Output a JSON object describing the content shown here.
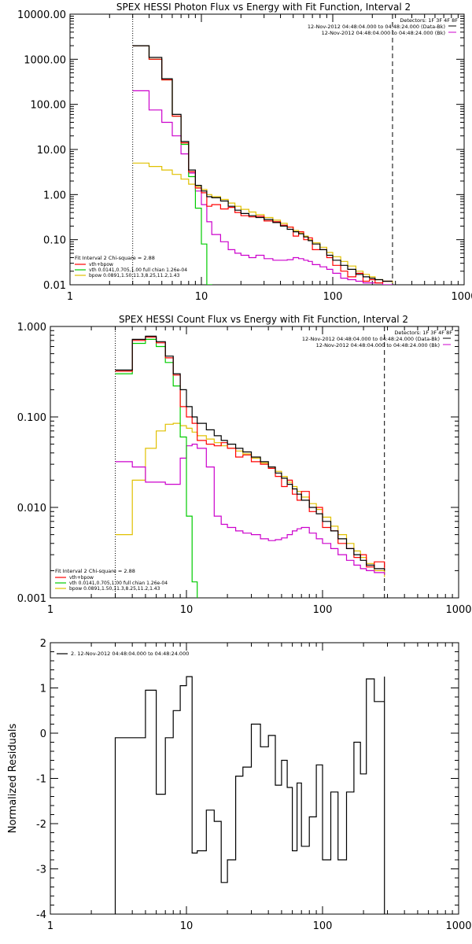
{
  "colors": {
    "background": "#ffffff",
    "axis": "#000000",
    "data": "#000000",
    "total": "#ff0000",
    "vth": "#00cc00",
    "bpow": "#e0c000",
    "background_model": "#cc00cc"
  },
  "chart_data": [
    {
      "type": "line",
      "title": "SPEX HESSI Photon Flux vs Energy with Fit Function, Interval 2",
      "xlabel": "",
      "ylabel": "",
      "xscale": "log",
      "yscale": "log",
      "xlim": [
        1,
        1000
      ],
      "ylim": [
        0.01,
        10000
      ],
      "x_ticks": [
        1,
        10,
        100,
        1000
      ],
      "x_ticklabels": [
        "1",
        "10",
        "100",
        "1000"
      ],
      "y_ticks": [
        0.01,
        0.1,
        1,
        10,
        100,
        1000,
        10000
      ],
      "y_ticklabels": [
        "0.01",
        "0.10",
        "1.00",
        "10.00",
        "100.00",
        "1000.00",
        "10000.00"
      ],
      "fit_range": [
        3,
        285
      ],
      "header": [
        "Detectors: 1F 3F 4F 8F",
        "12-Nov-2012 04:48:04.000 to 04:48:24.000 (Data-Bk)",
        "12-Nov-2012 04:48:04.000 to 04:48:24.000 (Bk)"
      ],
      "legend": {
        "position": "bottom-left",
        "title": "Fit Interval 2   Chi-square = 2.88",
        "entries": [
          {
            "label": "vth+bpow",
            "color": "#ff0000"
          },
          {
            "label": "vth 0.0141,0.705,1.00  full chian 1.26e-04",
            "color": "#00cc00"
          },
          {
            "label": "bpow 0.0891,1.50,11.3,8.25,11.2,1.43",
            "color": "#e0c000"
          }
        ]
      },
      "series": [
        {
          "x": [
            3,
            4,
            5,
            6,
            7,
            8,
            9,
            10,
            11,
            12,
            14,
            16,
            18,
            20,
            23,
            26,
            30,
            35,
            40,
            45,
            50,
            55,
            60,
            65,
            70,
            80,
            90,
            100,
            115,
            130,
            150,
            170,
            190,
            210,
            240,
            285
          ],
          "y": [
            2000,
            1100,
            370,
            60,
            15,
            3.5,
            1.6,
            1.2,
            0.9,
            0.85,
            0.72,
            0.55,
            0.45,
            0.38,
            0.34,
            0.31,
            0.28,
            0.24,
            0.2,
            0.17,
            0.15,
            0.135,
            0.115,
            0.095,
            0.08,
            0.06,
            0.045,
            0.035,
            0.027,
            0.022,
            0.017,
            0.015,
            0.014,
            0.013,
            0.012,
            0.012
          ]
        },
        {
          "x": [
            3,
            4,
            5,
            6,
            7,
            8,
            9,
            10,
            11,
            12,
            14,
            16,
            18,
            20,
            23,
            26,
            30,
            35,
            40,
            45,
            50,
            55,
            60,
            65,
            70,
            80,
            90,
            100,
            115,
            130,
            150,
            170,
            190,
            210,
            240,
            285
          ],
          "y": [
            2000,
            1000,
            350,
            55,
            14,
            3.2,
            1.4,
            1.1,
            0.55,
            0.6,
            0.48,
            0.52,
            0.4,
            0.34,
            0.32,
            0.33,
            0.26,
            0.25,
            0.21,
            0.19,
            0.12,
            0.15,
            0.1,
            0.11,
            0.06,
            0.06,
            0.04,
            0.027,
            0.02,
            0.015,
            0.018,
            0.012,
            0.013,
            0.011,
            0.012,
            0.012
          ]
        },
        {
          "x": [
            3,
            4,
            5,
            6,
            7,
            8,
            9,
            10,
            11,
            12
          ],
          "y": [
            2000,
            1000,
            350,
            55,
            13,
            2.5,
            0.5,
            0.08,
            0.01,
            0.001
          ]
        },
        {
          "x": [
            3,
            4,
            5,
            6,
            7,
            8,
            9,
            10,
            11,
            12,
            14,
            16,
            18,
            20,
            23,
            26,
            30,
            35,
            40,
            45,
            50,
            55,
            60,
            65,
            70,
            80,
            90,
            100,
            115,
            130,
            150,
            170,
            190,
            210,
            240,
            285
          ],
          "y": [
            5,
            4.2,
            3.5,
            2.8,
            2.2,
            1.7,
            1.5,
            1.3,
            1.0,
            0.9,
            0.78,
            0.65,
            0.55,
            0.47,
            0.41,
            0.36,
            0.31,
            0.27,
            0.23,
            0.19,
            0.16,
            0.14,
            0.12,
            0.1,
            0.085,
            0.068,
            0.052,
            0.042,
            0.033,
            0.026,
            0.02,
            0.017,
            0.015,
            0.013,
            0.012,
            0.011
          ]
        },
        {
          "x": [
            3,
            4,
            5,
            6,
            7,
            8,
            9,
            10,
            11,
            12,
            14,
            16,
            18,
            20,
            23,
            26,
            30,
            35,
            40,
            45,
            50,
            55,
            60,
            65,
            70,
            80,
            90,
            100,
            115,
            130,
            150,
            170,
            190,
            210,
            240,
            285
          ],
          "y": [
            200,
            75,
            40,
            20,
            8,
            3,
            1.2,
            0.6,
            0.25,
            0.13,
            0.09,
            0.06,
            0.05,
            0.045,
            0.04,
            0.045,
            0.038,
            0.035,
            0.035,
            0.036,
            0.04,
            0.038,
            0.035,
            0.033,
            0.028,
            0.025,
            0.022,
            0.018,
            0.014,
            0.013,
            0.012,
            0.011,
            0.011,
            0.011,
            0.01,
            0.01
          ]
        }
      ]
    },
    {
      "type": "line",
      "title": "SPEX HESSI Count Flux vs Energy with Fit Function, Interval 2",
      "xlabel": "",
      "ylabel": "",
      "xscale": "log",
      "yscale": "log",
      "xlim": [
        1,
        1000
      ],
      "ylim": [
        0.001,
        1
      ],
      "x_ticks": [
        1,
        10,
        100,
        1000
      ],
      "x_ticklabels": [
        "1",
        "10",
        "100",
        "1000"
      ],
      "y_ticks": [
        0.001,
        0.01,
        0.1,
        1
      ],
      "y_ticklabels": [
        "0.001",
        "0.010",
        "0.100",
        "1.000"
      ],
      "fit_range": [
        3,
        285
      ],
      "header": [
        "Detectors: 1F 3F 4F 8F",
        "12-Nov-2012 04:48:04.000 to 04:48:24.000 (Data-Bk)",
        "12-Nov-2012 04:48:04.000 to 04:48:24.000 (Bk)"
      ],
      "legend": {
        "position": "bottom-left",
        "title": "Fit Interval 2   Chi-square = 2.88",
        "entries": [
          {
            "label": "vth+bpow",
            "color": "#ff0000"
          },
          {
            "label": "vth 0.0141,0.705,1.00  full chian 1.26e-04",
            "color": "#00cc00"
          },
          {
            "label": "bpow 0.0891,1.50,11.3,8.25,11.2,1.43",
            "color": "#e0c000"
          }
        ]
      },
      "series": [
        {
          "x": [
            3,
            4,
            5,
            6,
            7,
            8,
            9,
            10,
            11,
            12,
            14,
            16,
            18,
            20,
            23,
            26,
            30,
            35,
            40,
            45,
            50,
            55,
            60,
            65,
            70,
            80,
            90,
            100,
            115,
            130,
            150,
            170,
            190,
            210,
            240,
            285
          ],
          "y": [
            0.33,
            0.72,
            0.78,
            0.68,
            0.47,
            0.3,
            0.2,
            0.13,
            0.1,
            0.085,
            0.072,
            0.062,
            0.055,
            0.05,
            0.045,
            0.041,
            0.036,
            0.032,
            0.028,
            0.024,
            0.021,
            0.018,
            0.016,
            0.014,
            0.012,
            0.01,
            0.0085,
            0.007,
            0.0055,
            0.0045,
            0.0035,
            0.003,
            0.0026,
            0.0023,
            0.0021,
            0.002
          ]
        },
        {
          "x": [
            3,
            4,
            5,
            6,
            7,
            8,
            9,
            10,
            11,
            12,
            14,
            16,
            18,
            20,
            23,
            26,
            30,
            35,
            40,
            45,
            50,
            55,
            60,
            65,
            70,
            80,
            90,
            100,
            115,
            130,
            150,
            170,
            190,
            210,
            240,
            285
          ],
          "y": [
            0.32,
            0.7,
            0.76,
            0.66,
            0.45,
            0.29,
            0.13,
            0.1,
            0.085,
            0.055,
            0.05,
            0.048,
            0.052,
            0.045,
            0.036,
            0.038,
            0.032,
            0.03,
            0.027,
            0.022,
            0.017,
            0.02,
            0.014,
            0.012,
            0.015,
            0.009,
            0.01,
            0.006,
            0.0055,
            0.004,
            0.0035,
            0.0028,
            0.003,
            0.0022,
            0.0025,
            0.002
          ]
        },
        {
          "x": [
            3,
            4,
            5,
            6,
            7,
            8,
            9,
            10,
            11,
            12
          ],
          "y": [
            0.3,
            0.65,
            0.72,
            0.6,
            0.4,
            0.22,
            0.06,
            0.008,
            0.0015,
            0.0005
          ]
        },
        {
          "x": [
            3,
            4,
            5,
            6,
            7,
            8,
            9,
            10,
            11,
            12,
            14,
            16,
            18,
            20,
            23,
            26,
            30,
            35,
            40,
            45,
            50,
            55,
            60,
            65,
            70,
            80,
            90,
            100,
            115,
            130,
            150,
            170,
            190,
            210,
            240,
            285
          ],
          "y": [
            0.005,
            0.02,
            0.045,
            0.07,
            0.083,
            0.085,
            0.08,
            0.075,
            0.068,
            0.062,
            0.057,
            0.052,
            0.048,
            0.045,
            0.042,
            0.039,
            0.035,
            0.031,
            0.028,
            0.025,
            0.022,
            0.019,
            0.017,
            0.015,
            0.013,
            0.011,
            0.0095,
            0.0078,
            0.0062,
            0.005,
            0.004,
            0.0033,
            0.0028,
            0.0024,
            0.002,
            0.0017
          ]
        },
        {
          "x": [
            3,
            4,
            5,
            6,
            7,
            8,
            9,
            10,
            11,
            12,
            14,
            16,
            18,
            20,
            23,
            26,
            30,
            35,
            40,
            45,
            50,
            55,
            60,
            65,
            70,
            80,
            90,
            100,
            115,
            130,
            150,
            170,
            190,
            210,
            240,
            285
          ],
          "y": [
            0.032,
            0.028,
            0.019,
            0.019,
            0.018,
            0.018,
            0.035,
            0.048,
            0.05,
            0.045,
            0.028,
            0.008,
            0.0065,
            0.006,
            0.0055,
            0.0052,
            0.005,
            0.0045,
            0.0043,
            0.0044,
            0.0046,
            0.005,
            0.0055,
            0.0058,
            0.006,
            0.0052,
            0.0045,
            0.004,
            0.0035,
            0.003,
            0.0026,
            0.0023,
            0.0021,
            0.002,
            0.0019,
            0.0018
          ]
        }
      ]
    },
    {
      "type": "line",
      "title": "",
      "xlabel": "",
      "ylabel": "Normalized Residuals",
      "xscale": "log",
      "yscale": "linear",
      "xlim": [
        1,
        1000
      ],
      "ylim": [
        -4,
        2
      ],
      "x_ticks": [
        1,
        10,
        100,
        1000
      ],
      "x_ticklabels": [
        "1",
        "10",
        "100",
        "1000"
      ],
      "y_ticks": [
        -4,
        -3,
        -2,
        -1,
        0,
        1,
        2
      ],
      "y_ticklabels": [
        "-4",
        "-3",
        "-2",
        "-1",
        "0",
        "1",
        "2"
      ],
      "legend": {
        "position": "top-left",
        "entries": [
          {
            "label": "2. 12-Nov-2012 04:48:04.000 to 04:48:24.000",
            "color": "#000000"
          }
        ]
      },
      "series": [
        {
          "x": [
            3,
            4,
            5,
            6,
            7,
            8,
            9,
            10,
            11,
            12,
            14,
            16,
            18,
            20,
            23,
            26,
            30,
            35,
            40,
            45,
            50,
            55,
            60,
            65,
            70,
            80,
            90,
            100,
            115,
            130,
            150,
            170,
            190,
            210,
            240,
            285
          ],
          "y": [
            -0.1,
            -0.1,
            0.95,
            -1.35,
            -0.1,
            0.5,
            1.05,
            1.25,
            -2.65,
            -2.6,
            -1.7,
            -1.95,
            -3.3,
            -2.8,
            -0.95,
            -0.75,
            0.2,
            -0.3,
            -0.05,
            -1.15,
            -0.6,
            -1.2,
            -2.6,
            -1.1,
            -2.5,
            -1.85,
            -0.7,
            -2.8,
            -1.3,
            -2.8,
            -1.3,
            -0.2,
            -0.9,
            1.2,
            0.7,
            1.25
          ]
        }
      ]
    }
  ]
}
